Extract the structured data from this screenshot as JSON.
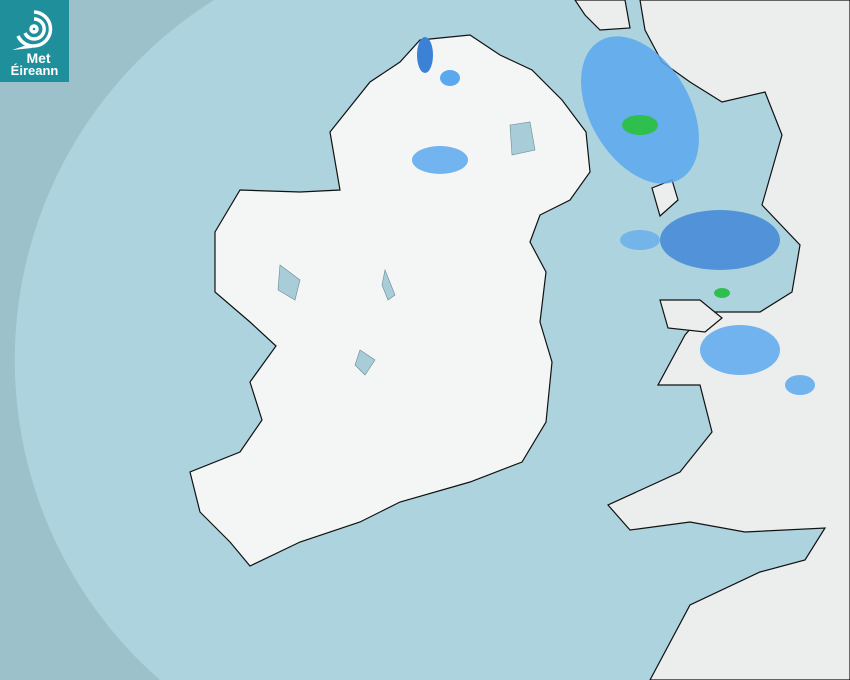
{
  "logo": {
    "line1": "Met",
    "line2": "Éireann",
    "icon": "swirl-logo-icon"
  },
  "colors": {
    "sea_outside_coverage": "#9dc1cb",
    "sea_radar_coverage": "#add3de",
    "land": "#f2f3f3",
    "lakes": "#a9cdd8",
    "rain_light": "#5aa8ee",
    "rain_moderate": "#3b82d6",
    "rain_heavy": "#2fbf4f",
    "logo_bg": "#1f8f9c"
  }
}
